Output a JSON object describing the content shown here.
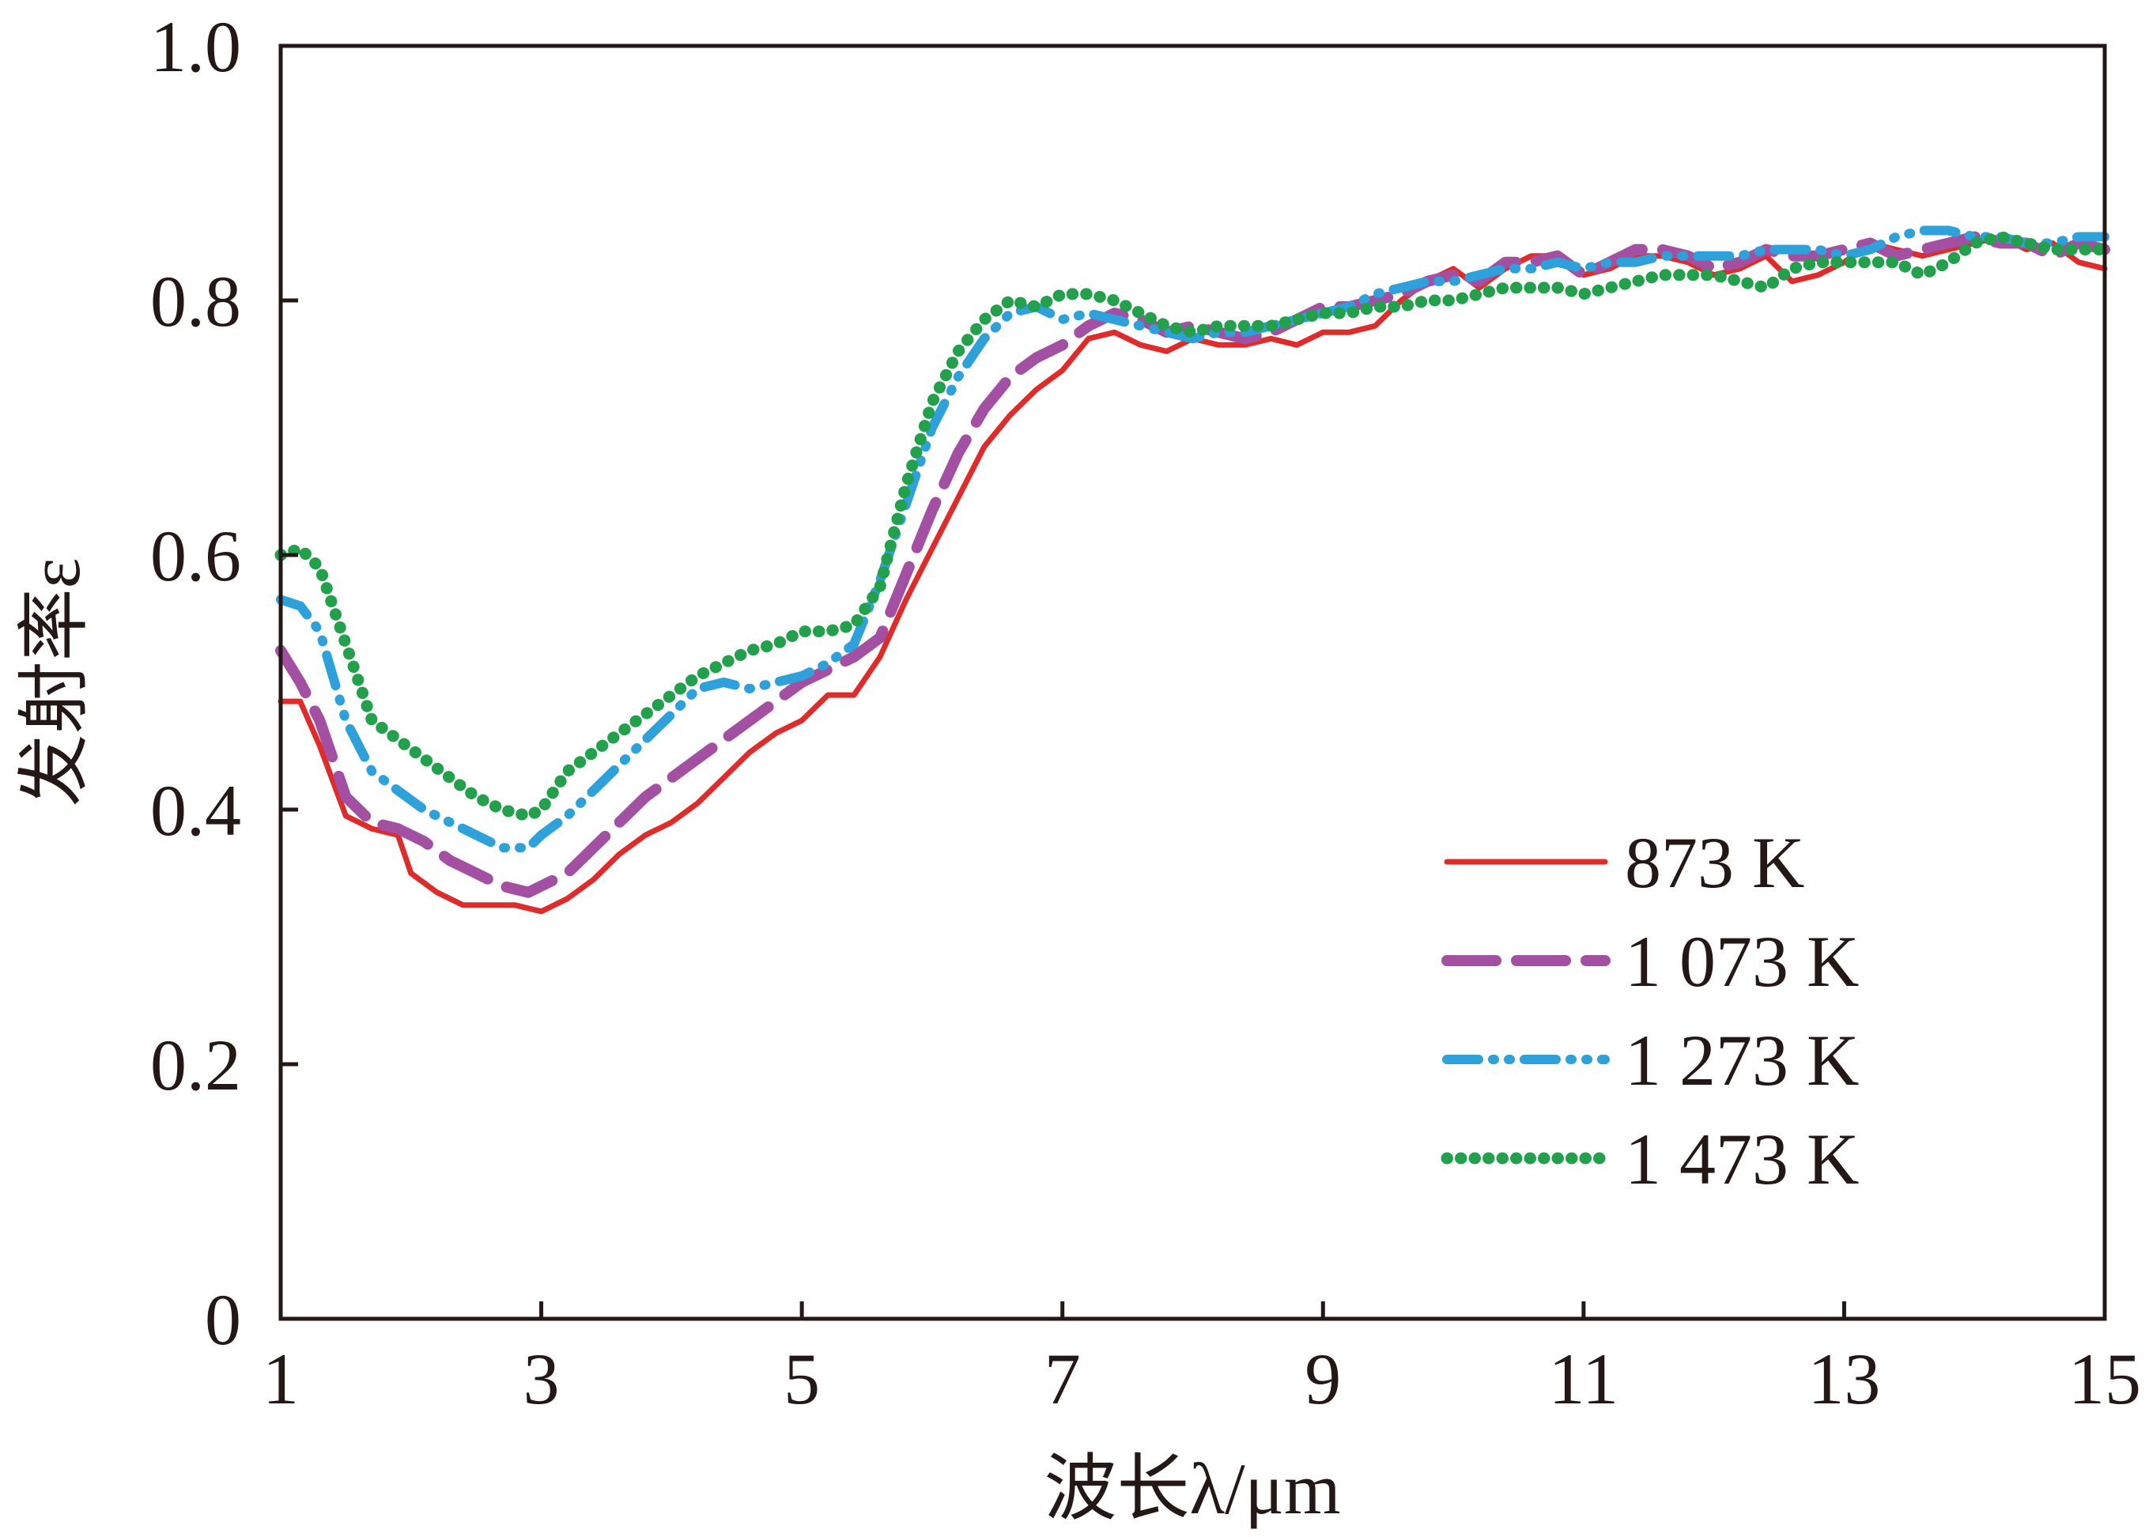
{
  "chart_data": {
    "type": "line",
    "xlabel": "波长λ/μm",
    "ylabel": "发射率ε",
    "xlim": [
      1,
      15
    ],
    "ylim": [
      0,
      1.0
    ],
    "xticks": [
      1,
      3,
      5,
      7,
      9,
      11,
      13,
      15
    ],
    "xtick_labels": [
      "1",
      "3",
      "5",
      "7",
      "9",
      "11",
      "13",
      "15"
    ],
    "yticks": [
      0,
      0.2,
      0.4,
      0.6,
      0.8,
      1.0
    ],
    "ytick_labels": [
      "0",
      "0.2",
      "0.4",
      "0.6",
      "0.8",
      "1.0"
    ],
    "grid": false,
    "legend_position": "lower-right",
    "series": [
      {
        "name": "873 K",
        "color": "#e02b2b",
        "style": "solid",
        "x": [
          1.0,
          1.15,
          1.3,
          1.5,
          1.7,
          1.9,
          2.0,
          2.2,
          2.4,
          2.6,
          2.8,
          3.0,
          3.2,
          3.4,
          3.6,
          3.8,
          4.0,
          4.2,
          4.4,
          4.6,
          4.8,
          5.0,
          5.2,
          5.4,
          5.6,
          5.8,
          6.0,
          6.2,
          6.4,
          6.6,
          6.8,
          7.0,
          7.2,
          7.4,
          7.6,
          7.8,
          8.0,
          8.2,
          8.4,
          8.6,
          8.8,
          9.0,
          9.2,
          9.4,
          9.6,
          9.8,
          10.0,
          10.2,
          10.4,
          10.6,
          10.8,
          11.0,
          11.2,
          11.4,
          11.6,
          11.8,
          12.0,
          12.2,
          12.4,
          12.6,
          12.8,
          13.0,
          13.2,
          13.4,
          13.6,
          13.8,
          14.0,
          14.2,
          14.4,
          14.6,
          14.8,
          15.0
        ],
        "y": [
          0.485,
          0.485,
          0.45,
          0.395,
          0.385,
          0.38,
          0.35,
          0.335,
          0.325,
          0.325,
          0.325,
          0.32,
          0.33,
          0.345,
          0.365,
          0.38,
          0.39,
          0.405,
          0.425,
          0.445,
          0.46,
          0.47,
          0.49,
          0.49,
          0.52,
          0.565,
          0.605,
          0.645,
          0.685,
          0.71,
          0.73,
          0.745,
          0.77,
          0.775,
          0.765,
          0.76,
          0.77,
          0.765,
          0.765,
          0.77,
          0.765,
          0.775,
          0.775,
          0.78,
          0.8,
          0.815,
          0.825,
          0.81,
          0.825,
          0.835,
          0.835,
          0.82,
          0.825,
          0.835,
          0.835,
          0.83,
          0.82,
          0.825,
          0.835,
          0.815,
          0.82,
          0.83,
          0.845,
          0.84,
          0.835,
          0.84,
          0.845,
          0.85,
          0.84,
          0.845,
          0.83,
          0.825
        ]
      },
      {
        "name": "1 073 K",
        "color": "#a350a3",
        "style": "dashed",
        "x": [
          1.0,
          1.15,
          1.3,
          1.5,
          1.7,
          1.9,
          2.1,
          2.3,
          2.5,
          2.7,
          2.9,
          3.0,
          3.2,
          3.4,
          3.6,
          3.8,
          4.0,
          4.2,
          4.4,
          4.6,
          4.8,
          5.0,
          5.2,
          5.4,
          5.6,
          5.8,
          6.0,
          6.2,
          6.4,
          6.6,
          6.8,
          7.0,
          7.2,
          7.4,
          7.6,
          7.8,
          8.0,
          8.2,
          8.4,
          8.6,
          8.8,
          9.0,
          9.2,
          9.4,
          9.6,
          9.8,
          10.0,
          10.2,
          10.4,
          10.6,
          10.8,
          11.0,
          11.2,
          11.4,
          11.6,
          11.8,
          12.0,
          12.2,
          12.4,
          12.6,
          12.8,
          13.0,
          13.2,
          13.4,
          13.6,
          13.8,
          14.0,
          14.2,
          14.4,
          14.6,
          14.8,
          15.0
        ],
        "y": [
          0.525,
          0.5,
          0.47,
          0.41,
          0.39,
          0.385,
          0.375,
          0.36,
          0.35,
          0.34,
          0.335,
          0.34,
          0.35,
          0.37,
          0.39,
          0.41,
          0.425,
          0.44,
          0.455,
          0.47,
          0.485,
          0.5,
          0.51,
          0.52,
          0.535,
          0.585,
          0.635,
          0.68,
          0.715,
          0.74,
          0.755,
          0.765,
          0.78,
          0.79,
          0.785,
          0.775,
          0.78,
          0.775,
          0.77,
          0.775,
          0.785,
          0.795,
          0.795,
          0.8,
          0.805,
          0.815,
          0.82,
          0.815,
          0.83,
          0.83,
          0.835,
          0.82,
          0.83,
          0.84,
          0.84,
          0.835,
          0.825,
          0.83,
          0.84,
          0.835,
          0.835,
          0.84,
          0.845,
          0.835,
          0.84,
          0.845,
          0.85,
          0.845,
          0.845,
          0.835,
          0.845,
          0.84
        ]
      },
      {
        "name": "1 273 K",
        "color": "#2ea0da",
        "style": "dash-dot-dot",
        "x": [
          1.0,
          1.15,
          1.3,
          1.5,
          1.7,
          1.9,
          2.1,
          2.3,
          2.5,
          2.7,
          2.9,
          3.0,
          3.2,
          3.4,
          3.6,
          3.8,
          4.0,
          4.2,
          4.4,
          4.6,
          4.8,
          5.0,
          5.2,
          5.4,
          5.6,
          5.8,
          6.0,
          6.2,
          6.4,
          6.6,
          6.8,
          7.0,
          7.2,
          7.4,
          7.6,
          7.8,
          8.0,
          8.2,
          8.4,
          8.6,
          8.8,
          9.0,
          9.2,
          9.4,
          9.6,
          9.8,
          10.0,
          10.2,
          10.4,
          10.6,
          10.8,
          11.0,
          11.2,
          11.4,
          11.6,
          11.8,
          12.0,
          12.2,
          12.4,
          12.6,
          12.8,
          13.0,
          13.2,
          13.4,
          13.6,
          13.8,
          14.0,
          14.2,
          14.4,
          14.6,
          14.8,
          15.0
        ],
        "y": [
          0.565,
          0.56,
          0.54,
          0.47,
          0.43,
          0.415,
          0.4,
          0.39,
          0.38,
          0.37,
          0.37,
          0.38,
          0.395,
          0.415,
          0.435,
          0.455,
          0.475,
          0.495,
          0.5,
          0.495,
          0.5,
          0.505,
          0.515,
          0.53,
          0.58,
          0.64,
          0.7,
          0.74,
          0.77,
          0.79,
          0.795,
          0.785,
          0.79,
          0.785,
          0.78,
          0.775,
          0.77,
          0.775,
          0.775,
          0.78,
          0.785,
          0.79,
          0.795,
          0.805,
          0.81,
          0.815,
          0.815,
          0.82,
          0.825,
          0.825,
          0.83,
          0.825,
          0.83,
          0.83,
          0.835,
          0.835,
          0.835,
          0.835,
          0.84,
          0.84,
          0.84,
          0.835,
          0.84,
          0.85,
          0.855,
          0.855,
          0.85,
          0.85,
          0.845,
          0.845,
          0.85,
          0.85
        ]
      },
      {
        "name": "1 473 K",
        "color": "#22a04b",
        "style": "dotted",
        "x": [
          1.0,
          1.15,
          1.3,
          1.5,
          1.7,
          1.9,
          2.1,
          2.3,
          2.5,
          2.7,
          2.9,
          3.0,
          3.2,
          3.4,
          3.6,
          3.8,
          4.0,
          4.2,
          4.4,
          4.6,
          4.8,
          5.0,
          5.2,
          5.4,
          5.6,
          5.8,
          6.0,
          6.2,
          6.4,
          6.6,
          6.8,
          7.0,
          7.2,
          7.4,
          7.6,
          7.8,
          8.0,
          8.2,
          8.4,
          8.6,
          8.8,
          9.0,
          9.2,
          9.4,
          9.6,
          9.8,
          10.0,
          10.2,
          10.4,
          10.6,
          10.8,
          11.0,
          11.2,
          11.4,
          11.6,
          11.8,
          12.0,
          12.2,
          12.4,
          12.6,
          12.8,
          13.0,
          13.2,
          13.4,
          13.6,
          13.8,
          14.0,
          14.2,
          14.4,
          14.6,
          14.8,
          15.0
        ],
        "y": [
          0.6,
          0.605,
          0.59,
          0.53,
          0.47,
          0.455,
          0.44,
          0.425,
          0.41,
          0.4,
          0.395,
          0.4,
          0.43,
          0.445,
          0.46,
          0.475,
          0.49,
          0.505,
          0.515,
          0.525,
          0.53,
          0.54,
          0.54,
          0.545,
          0.575,
          0.655,
          0.72,
          0.76,
          0.785,
          0.8,
          0.795,
          0.805,
          0.805,
          0.8,
          0.79,
          0.78,
          0.775,
          0.78,
          0.78,
          0.78,
          0.785,
          0.79,
          0.79,
          0.795,
          0.795,
          0.8,
          0.8,
          0.805,
          0.81,
          0.81,
          0.81,
          0.805,
          0.81,
          0.815,
          0.82,
          0.82,
          0.82,
          0.815,
          0.81,
          0.825,
          0.83,
          0.83,
          0.83,
          0.83,
          0.82,
          0.83,
          0.845,
          0.85,
          0.845,
          0.84,
          0.84,
          0.84
        ]
      }
    ]
  }
}
